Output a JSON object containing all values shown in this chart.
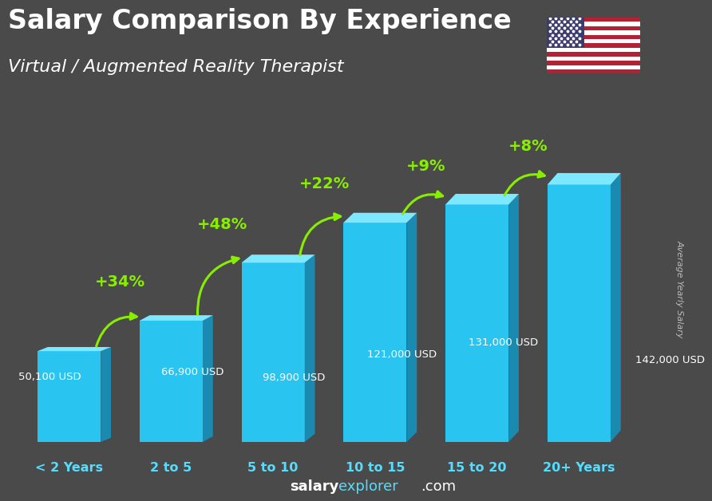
{
  "title_line1": "Salary Comparison By Experience",
  "title_line2": "Virtual / Augmented Reality Therapist",
  "categories": [
    "< 2 Years",
    "2 to 5",
    "5 to 10",
    "10 to 15",
    "15 to 20",
    "20+ Years"
  ],
  "values": [
    50100,
    66900,
    98900,
    121000,
    131000,
    142000
  ],
  "value_labels": [
    "50,100 USD",
    "66,900 USD",
    "98,900 USD",
    "121,000 USD",
    "131,000 USD",
    "142,000 USD"
  ],
  "pct_labels": [
    "+34%",
    "+48%",
    "+22%",
    "+9%",
    "+8%"
  ],
  "bar_color_main": "#29c5f0",
  "bar_color_light": "#7de8ff",
  "bar_color_dark": "#1a8ab0",
  "bg_color": "#4a4a4a",
  "title_color": "#ffffff",
  "subtitle_color": "#ffffff",
  "value_label_color": "#ffffff",
  "pct_label_color": "#88ee00",
  "xlabel_color": "#55ddff",
  "footer_salary_color": "#ffffff",
  "footer_explorer_color": "#55ddff",
  "ylabel_text": "Average Yearly Salary",
  "ylim_max": 175000,
  "bar_width": 0.62
}
